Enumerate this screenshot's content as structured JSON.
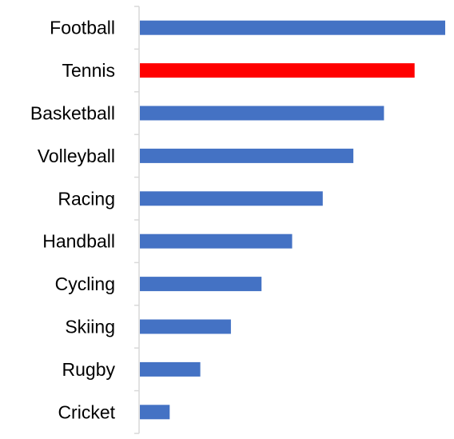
{
  "chart_data": {
    "type": "bar",
    "orientation": "horizontal",
    "categories": [
      "Football",
      "Tennis",
      "Basketball",
      "Volleyball",
      "Racing",
      "Handball",
      "Cycling",
      "Skiing",
      "Rugby",
      "Cricket"
    ],
    "values": [
      10,
      9,
      8,
      7,
      6,
      5,
      4,
      3,
      2,
      1
    ],
    "colors": {
      "default": "#4472C4",
      "highlight": "#FF0000"
    },
    "highlight_category": "Tennis",
    "xlim": [
      0,
      10
    ],
    "title": "",
    "xlabel": "",
    "ylabel": "",
    "grid": false,
    "legend": "none",
    "x_axis_visible": false
  }
}
